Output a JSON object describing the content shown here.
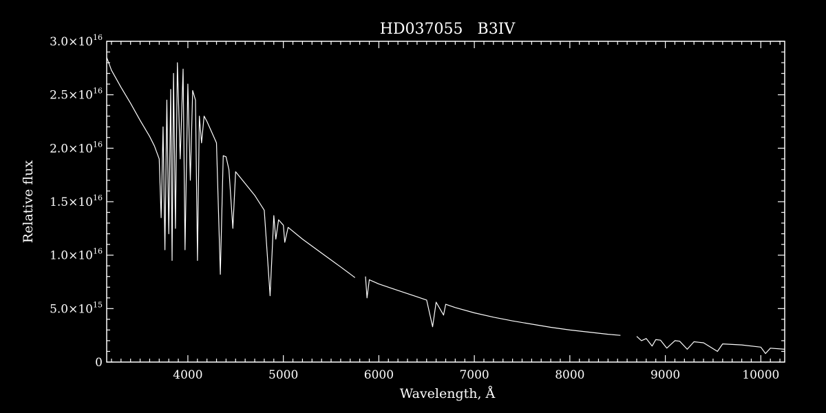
{
  "chart_data": {
    "type": "line",
    "title": "HD037055   B3IV",
    "xlabel": "Wavelength, Å",
    "ylabel": "Relative flux",
    "xlim": [
      3150,
      10250
    ],
    "ylim": [
      0,
      3e+16
    ],
    "x_ticks": [
      4000,
      5000,
      6000,
      7000,
      8000,
      9000,
      10000
    ],
    "x_tick_labels": [
      "4000",
      "5000",
      "6000",
      "7000",
      "8000",
      "9000",
      "10000"
    ],
    "y_ticks": [
      0,
      5000000000000000.0,
      1e+16,
      1.5e+16,
      2e+16,
      2.5e+16,
      3e+16
    ],
    "y_tick_labels": [
      {
        "mant": "0",
        "exp": ""
      },
      {
        "mant": "5.0×10",
        "exp": "15"
      },
      {
        "mant": "1.0×10",
        "exp": "16"
      },
      {
        "mant": "1.5×10",
        "exp": "16"
      },
      {
        "mant": "2.0×10",
        "exp": "16"
      },
      {
        "mant": "2.5×10",
        "exp": "16"
      },
      {
        "mant": "3.0×10",
        "exp": "16"
      }
    ],
    "line_color": "#ffffff",
    "background": "#000000",
    "grid": false,
    "series": [
      {
        "name": "",
        "segments": [
          [
            [
              3150,
              2.85e+16
            ],
            [
              3200,
              2.73e+16
            ],
            [
              3300,
              2.57e+16
            ],
            [
              3400,
              2.42e+16
            ],
            [
              3500,
              2.26e+16
            ],
            [
              3600,
              2.11e+16
            ],
            [
              3650,
              2.02e+16
            ],
            [
              3700,
              1.9e+16
            ],
            [
              3720,
              1.35e+16
            ],
            [
              3740,
              2.2e+16
            ],
            [
              3760,
              1.05e+16
            ],
            [
              3780,
              2.45e+16
            ],
            [
              3800,
              1.2e+16
            ],
            [
              3820,
              2.55e+16
            ],
            [
              3835,
              9500000000000000.0
            ],
            [
              3850,
              2.7e+16
            ],
            [
              3870,
              1.25e+16
            ],
            [
              3890,
              2.8e+16
            ],
            [
              3920,
              1.9e+16
            ],
            [
              3950,
              2.74e+16
            ],
            [
              3970,
              1.05e+16
            ],
            [
              4000,
              2.6e+16
            ],
            [
              4026,
              1.7e+16
            ],
            [
              4050,
              2.54e+16
            ],
            [
              4080,
              2.45e+16
            ],
            [
              4101,
              9500000000000000.0
            ],
            [
              4120,
              2.3e+16
            ],
            [
              4143,
              2.05e+16
            ],
            [
              4170,
              2.3e+16
            ],
            [
              4200,
              2.25e+16
            ],
            [
              4250,
              2.15e+16
            ],
            [
              4300,
              2.05e+16
            ],
            [
              4340,
              8200000000000000.0
            ],
            [
              4370,
              1.93e+16
            ],
            [
              4400,
              1.92e+16
            ],
            [
              4430,
              1.8e+16
            ],
            [
              4471,
              1.25e+16
            ],
            [
              4500,
              1.78e+16
            ],
            [
              4600,
              1.67e+16
            ],
            [
              4700,
              1.56e+16
            ],
            [
              4800,
              1.42e+16
            ],
            [
              4861,
              6200000000000000.0
            ],
            [
              4900,
              1.37e+16
            ],
            [
              4921,
              1.15e+16
            ],
            [
              4950,
              1.33e+16
            ],
            [
              5000,
              1.28e+16
            ],
            [
              5015,
              1.12e+16
            ],
            [
              5050,
              1.26e+16
            ],
            [
              5200,
              1.15e+16
            ],
            [
              5400,
              1.02e+16
            ],
            [
              5600,
              8900000000000000.0
            ],
            [
              5750,
              7900000000000000.0
            ]
          ],
          [
            [
              5860,
              8000000000000000.0
            ],
            [
              5876,
              6000000000000000.0
            ],
            [
              5900,
              7700000000000000.0
            ],
            [
              6000,
              7300000000000000.0
            ],
            [
              6200,
              6700000000000000.0
            ],
            [
              6400,
              6100000000000000.0
            ],
            [
              6500,
              5800000000000000.0
            ],
            [
              6563,
              3300000000000000.0
            ],
            [
              6600,
              5600000000000000.0
            ],
            [
              6678,
              4400000000000000.0
            ],
            [
              6700,
              5400000000000000.0
            ],
            [
              6800,
              5100000000000000.0
            ],
            [
              7000,
              4600000000000000.0
            ],
            [
              7200,
              4200000000000000.0
            ],
            [
              7400,
              3850000000000000.0
            ],
            [
              7600,
              3550000000000000.0
            ],
            [
              7800,
              3250000000000000.0
            ],
            [
              8000,
              3000000000000000.0
            ],
            [
              8200,
              2800000000000000.0
            ],
            [
              8400,
              2600000000000000.0
            ],
            [
              8530,
              2500000000000000.0
            ]
          ],
          [
            [
              8700,
              2400000000000000.0
            ],
            [
              8750,
              2000000000000000.0
            ],
            [
              8800,
              2200000000000000.0
            ],
            [
              8862,
              1500000000000000.0
            ],
            [
              8900,
              2100000000000000.0
            ],
            [
              8950,
              2050000000000000.0
            ],
            [
              9015,
              1300000000000000.0
            ],
            [
              9100,
              2000000000000000.0
            ],
            [
              9150,
              1950000000000000.0
            ],
            [
              9229,
              1200000000000000.0
            ],
            [
              9300,
              1900000000000000.0
            ],
            [
              9400,
              1800000000000000.0
            ],
            [
              9546,
              1000000000000000.0
            ],
            [
              9600,
              1700000000000000.0
            ],
            [
              9800,
              1600000000000000.0
            ],
            [
              10000,
              1400000000000000.0
            ],
            [
              10049,
              800000000000000.0
            ],
            [
              10100,
              1300000000000000.0
            ],
            [
              10250,
              1200000000000000.0
            ]
          ]
        ]
      }
    ]
  }
}
